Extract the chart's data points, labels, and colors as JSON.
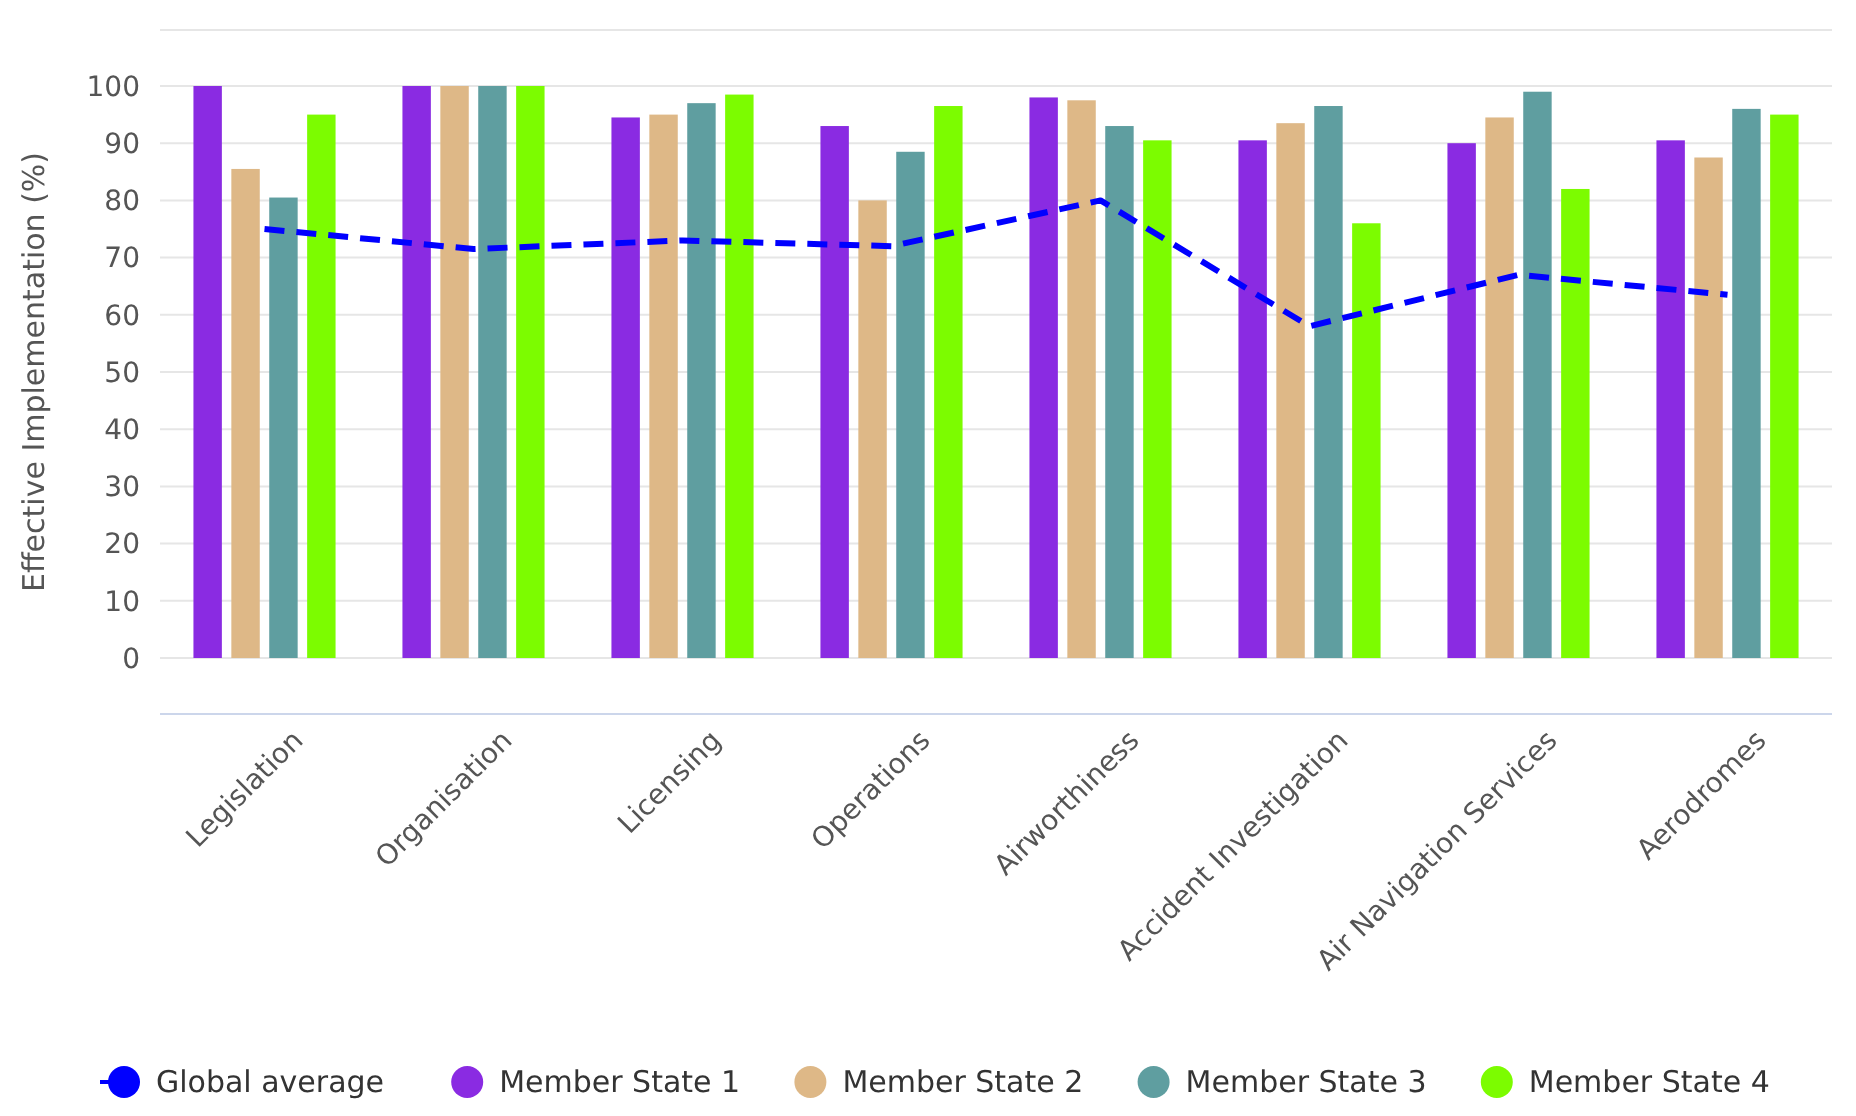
{
  "chart_data": {
    "type": "bar",
    "ylabel": "Effective Implementation (%)",
    "categories": [
      "Legislation",
      "Organisation",
      "Licensing",
      "Operations",
      "Airworthiness",
      "Accident Investigation",
      "Air Navigation Services",
      "Aerodromes"
    ],
    "series": [
      {
        "name": "Global average",
        "type": "line",
        "color": "#0000ff",
        "line_style": "dashed",
        "values": [
          75,
          71.5,
          73,
          72,
          80,
          58,
          67,
          63.5
        ]
      },
      {
        "name": "Member State 1",
        "color": "#8a2be2",
        "values": [
          100,
          100,
          94.5,
          93,
          98,
          90.5,
          90,
          90.5
        ]
      },
      {
        "name": "Member State 2",
        "color": "#deb887",
        "values": [
          85.5,
          100,
          95,
          80,
          97.5,
          93.5,
          94.5,
          87.5
        ]
      },
      {
        "name": "Member State 3",
        "color": "#5f9ea0",
        "values": [
          80.5,
          100,
          97,
          88.5,
          93,
          96.5,
          99,
          96
        ]
      },
      {
        "name": "Member State 4",
        "color": "#7cfc00",
        "values": [
          95,
          100,
          98.5,
          96.5,
          90.5,
          76,
          82,
          95
        ]
      }
    ],
    "ylim": [
      0,
      100
    ],
    "yticks": [
      0,
      10,
      20,
      30,
      40,
      50,
      60,
      70,
      80,
      90,
      100
    ],
    "grid": "y",
    "legend": "bottom"
  }
}
